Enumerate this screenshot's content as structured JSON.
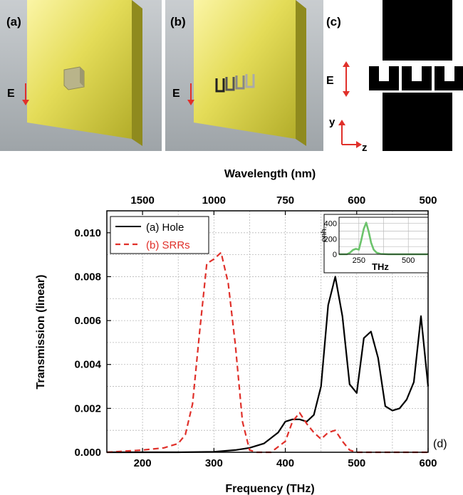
{
  "panels": {
    "a": {
      "label": "(a)",
      "field_label": "E"
    },
    "b": {
      "label": "(b)",
      "field_label": "E"
    },
    "c": {
      "label": "(c)",
      "field_label": "E",
      "axis_y": "y",
      "axis_z": "z"
    },
    "d": {
      "label": "(d)"
    }
  },
  "colors": {
    "hole": "#000000",
    "srr": "#e0302a",
    "inset": "#6cc36c",
    "arrow": "#e0302a",
    "gold": "#d7d03c"
  },
  "chart_data": [
    {
      "type": "line",
      "title": "",
      "xlabel": "Frequency (THz)",
      "ylabel": "Transmission (linear)",
      "top_xlabel": "Wavelength (nm)",
      "xlim": [
        150,
        600
      ],
      "ylim": [
        0,
        0.011
      ],
      "x_ticks": [
        200,
        300,
        400,
        500,
        600
      ],
      "x_tick_labels": [
        "200",
        "300",
        "400",
        "500",
        "600"
      ],
      "y_ticks": [
        0,
        0.002,
        0.004,
        0.006,
        0.008,
        0.01
      ],
      "y_tick_labels": [
        "0.000",
        "0.002",
        "0.004",
        "0.006",
        "0.008",
        "0.010"
      ],
      "top_ticks": [
        {
          "label": "1500",
          "x": 200
        },
        {
          "label": "1000",
          "x": 300
        },
        {
          "label": "750",
          "x": 400
        },
        {
          "label": "600",
          "x": 500
        },
        {
          "label": "500",
          "x": 600
        }
      ],
      "grid": true,
      "legend_position": "top-left",
      "series": [
        {
          "name": "(a) Hole",
          "style": "solid",
          "x": [
            150,
            200,
            250,
            300,
            330,
            350,
            370,
            390,
            400,
            410,
            420,
            430,
            440,
            450,
            460,
            470,
            480,
            490,
            500,
            510,
            520,
            530,
            540,
            550,
            560,
            570,
            580,
            590,
            600
          ],
          "y": [
            0,
            0,
            0,
            2e-05,
            0.0001,
            0.0002,
            0.0004,
            0.0009,
            0.0014,
            0.0015,
            0.0015,
            0.0014,
            0.0017,
            0.003,
            0.0067,
            0.008,
            0.0062,
            0.0031,
            0.0027,
            0.0052,
            0.0055,
            0.0043,
            0.0021,
            0.0019,
            0.002,
            0.0024,
            0.0032,
            0.0062,
            0.003
          ]
        },
        {
          "name": "(b) SRRs",
          "style": "dashed",
          "x": [
            150,
            200,
            230,
            250,
            260,
            270,
            280,
            290,
            300,
            310,
            320,
            330,
            340,
            350,
            360,
            380,
            400,
            410,
            420,
            430,
            440,
            450,
            460,
            470,
            480,
            490,
            500,
            600
          ],
          "y": [
            0,
            0.0001,
            0.0002,
            0.0004,
            0.0008,
            0.0022,
            0.0055,
            0.0086,
            0.0088,
            0.0091,
            0.0077,
            0.0049,
            0.0014,
            0.0001,
            0,
            0,
            0.0005,
            0.0014,
            0.0018,
            0.0013,
            0.0009,
            0.0006,
            0.0009,
            0.001,
            0.0005,
            0.0001,
            0,
            0
          ]
        }
      ]
    },
    {
      "type": "line",
      "title": "",
      "xlabel": "THz",
      "ylabel": "enh.",
      "xlim": [
        150,
        600
      ],
      "ylim": [
        0,
        480
      ],
      "x_ticks": [
        250,
        500
      ],
      "x_tick_labels": [
        "250",
        "500"
      ],
      "y_ticks": [
        0,
        200,
        400
      ],
      "y_tick_labels": [
        "0",
        "200",
        "400"
      ],
      "grid": true,
      "series": [
        {
          "style": "solid",
          "x": [
            150,
            190,
            205,
            220,
            235,
            250,
            262,
            275,
            287,
            300,
            312,
            325,
            340,
            360,
            400,
            500,
            600
          ],
          "y": [
            0,
            0,
            20,
            55,
            70,
            60,
            180,
            330,
            410,
            290,
            150,
            60,
            20,
            5,
            0,
            0,
            0
          ]
        }
      ]
    }
  ]
}
